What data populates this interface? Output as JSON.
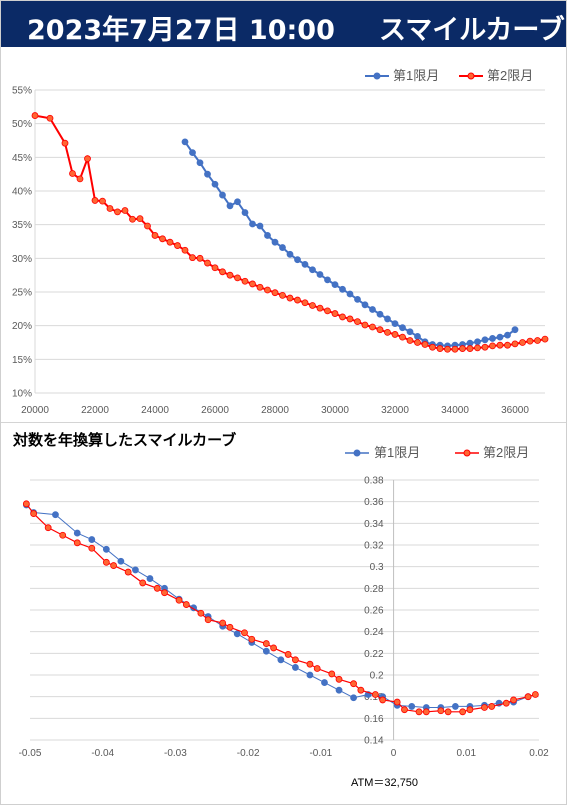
{
  "header": {
    "date_label": "2023年7月27日 10:00",
    "title": "スマイルカーブ"
  },
  "colors": {
    "header_bg": "#0b2a66",
    "series1": "#4472c4",
    "series2": "#ff0000",
    "series2_marker_fill": "#ff6633"
  },
  "chart_data": [
    {
      "type": "line",
      "title": "",
      "xlabel": "",
      "ylabel": "",
      "xlim": [
        20000,
        37000
      ],
      "ylim": [
        10,
        55
      ],
      "x_ticks": [
        "20000",
        "22000",
        "24000",
        "26000",
        "28000",
        "30000",
        "32000",
        "34000",
        "36000"
      ],
      "y_ticks": [
        "10%",
        "15%",
        "20%",
        "25%",
        "30%",
        "35%",
        "40%",
        "45%",
        "50%",
        "55%"
      ],
      "grid": "horizontal",
      "legend_position": "top-right",
      "series": [
        {
          "name": "第1限月",
          "x": [
            25000,
            25250,
            25500,
            25750,
            26000,
            26250,
            26500,
            26750,
            27000,
            27250,
            27500,
            27750,
            28000,
            28250,
            28500,
            28750,
            29000,
            29250,
            29500,
            29750,
            30000,
            30250,
            30500,
            30750,
            31000,
            31250,
            31500,
            31750,
            32000,
            32250,
            32500,
            32750,
            33000,
            33250,
            33500,
            33750,
            34000,
            34250,
            34500,
            34750,
            35000,
            35250,
            35500,
            35750,
            36000
          ],
          "y": [
            47.3,
            45.7,
            44.2,
            42.5,
            41.0,
            39.4,
            37.8,
            38.4,
            36.8,
            35.1,
            34.8,
            33.4,
            32.4,
            31.6,
            30.6,
            29.8,
            29.1,
            28.3,
            27.6,
            26.8,
            26.1,
            25.4,
            24.7,
            23.9,
            23.1,
            22.4,
            21.7,
            21.0,
            20.3,
            19.7,
            19.1,
            18.4,
            17.6,
            17.2,
            17.1,
            17.0,
            17.1,
            17.2,
            17.4,
            17.6,
            17.9,
            18.1,
            18.3,
            18.6,
            19.4
          ]
        },
        {
          "name": "第2限月",
          "x": [
            20000,
            20500,
            21000,
            21250,
            21500,
            21750,
            22000,
            22250,
            22500,
            22750,
            23000,
            23250,
            23500,
            23750,
            24000,
            24250,
            24500,
            24750,
            25000,
            25250,
            25500,
            25750,
            26000,
            26250,
            26500,
            26750,
            27000,
            27250,
            27500,
            27750,
            28000,
            28250,
            28500,
            28750,
            29000,
            29250,
            29500,
            29750,
            30000,
            30250,
            30500,
            30750,
            31000,
            31250,
            31500,
            31750,
            32000,
            32250,
            32500,
            32750,
            33000,
            33250,
            33500,
            33750,
            34000,
            34250,
            34500,
            34750,
            35000,
            35250,
            35500,
            35750,
            36000,
            36250,
            36500,
            36750,
            37000
          ],
          "y": [
            51.2,
            50.8,
            47.1,
            42.6,
            41.8,
            44.8,
            38.6,
            38.5,
            37.4,
            36.9,
            37.1,
            35.8,
            35.9,
            34.8,
            33.4,
            32.9,
            32.4,
            31.9,
            31.2,
            30.1,
            30.0,
            29.3,
            28.6,
            28.0,
            27.5,
            27.1,
            26.6,
            26.2,
            25.7,
            25.3,
            24.9,
            24.5,
            24.1,
            23.8,
            23.4,
            23.0,
            22.6,
            22.2,
            21.8,
            21.3,
            21.0,
            20.6,
            20.1,
            19.8,
            19.4,
            19.0,
            18.7,
            18.3,
            17.8,
            17.5,
            17.2,
            16.8,
            16.6,
            16.5,
            16.5,
            16.6,
            16.6,
            16.7,
            16.8,
            17.0,
            17.1,
            17.1,
            17.3,
            17.5,
            17.7,
            17.8,
            18.0
          ]
        }
      ]
    },
    {
      "type": "line",
      "title": "対数を年換算したスマイルカーブ",
      "xlabel": "",
      "ylabel": "",
      "xlim": [
        -0.05,
        0.02
      ],
      "ylim": [
        0.14,
        0.38
      ],
      "x_ticks": [
        "-0.05",
        "-0.04",
        "-0.03",
        "-0.02",
        "-0.01",
        "0",
        "0.01",
        "0.02"
      ],
      "y_ticks": [
        "0.14",
        "0.16",
        "0.18",
        "0.2",
        "0.22",
        "0.24",
        "0.26",
        "0.28",
        "0.3",
        "0.32",
        "0.34",
        "0.36",
        "0.38"
      ],
      "grid": "horizontal",
      "legend_position": "top-right",
      "annotation": "ATM＝32,750",
      "series": [
        {
          "name": "第1限月",
          "x": [
            -0.0505,
            -0.0495,
            -0.0465,
            -0.0435,
            -0.0415,
            -0.0395,
            -0.0375,
            -0.0355,
            -0.0335,
            -0.0315,
            -0.0295,
            -0.0275,
            -0.0255,
            -0.0235,
            -0.0215,
            -0.0195,
            -0.0175,
            -0.0155,
            -0.0135,
            -0.0115,
            -0.0095,
            -0.0075,
            -0.0055,
            -0.0035,
            -0.0015,
            0.0005,
            0.0025,
            0.0045,
            0.0065,
            0.0085,
            0.0105,
            0.0125,
            0.0145,
            0.0165,
            0.0185
          ],
          "y": [
            0.357,
            0.35,
            0.348,
            0.331,
            0.325,
            0.316,
            0.305,
            0.297,
            0.289,
            0.28,
            0.27,
            0.262,
            0.254,
            0.245,
            0.238,
            0.23,
            0.222,
            0.214,
            0.207,
            0.2,
            0.193,
            0.186,
            0.179,
            0.182,
            0.18,
            0.172,
            0.171,
            0.17,
            0.17,
            0.171,
            0.171,
            0.172,
            0.174,
            0.175,
            0.18
          ]
        },
        {
          "name": "第2限月",
          "x": [
            -0.0505,
            -0.0495,
            -0.0475,
            -0.0455,
            -0.0435,
            -0.0415,
            -0.0395,
            -0.0385,
            -0.0365,
            -0.0345,
            -0.0325,
            -0.0315,
            -0.0295,
            -0.0285,
            -0.0265,
            -0.0255,
            -0.0235,
            -0.0225,
            -0.0205,
            -0.0195,
            -0.0175,
            -0.0165,
            -0.0145,
            -0.0135,
            -0.0115,
            -0.0105,
            -0.0085,
            -0.0075,
            -0.0055,
            -0.0045,
            -0.0025,
            -0.0015,
            0.0005,
            0.0015,
            0.0035,
            0.0045,
            0.0065,
            0.0075,
            0.0095,
            0.0105,
            0.0125,
            0.0135,
            0.0155,
            0.0165,
            0.0185,
            0.0195
          ],
          "y": [
            0.358,
            0.349,
            0.336,
            0.329,
            0.322,
            0.317,
            0.304,
            0.301,
            0.295,
            0.285,
            0.28,
            0.276,
            0.269,
            0.265,
            0.257,
            0.251,
            0.248,
            0.244,
            0.239,
            0.233,
            0.229,
            0.225,
            0.219,
            0.214,
            0.21,
            0.206,
            0.201,
            0.196,
            0.192,
            0.186,
            0.182,
            0.177,
            0.175,
            0.168,
            0.166,
            0.166,
            0.167,
            0.166,
            0.166,
            0.168,
            0.17,
            0.171,
            0.174,
            0.177,
            0.18,
            0.182
          ]
        }
      ]
    }
  ]
}
